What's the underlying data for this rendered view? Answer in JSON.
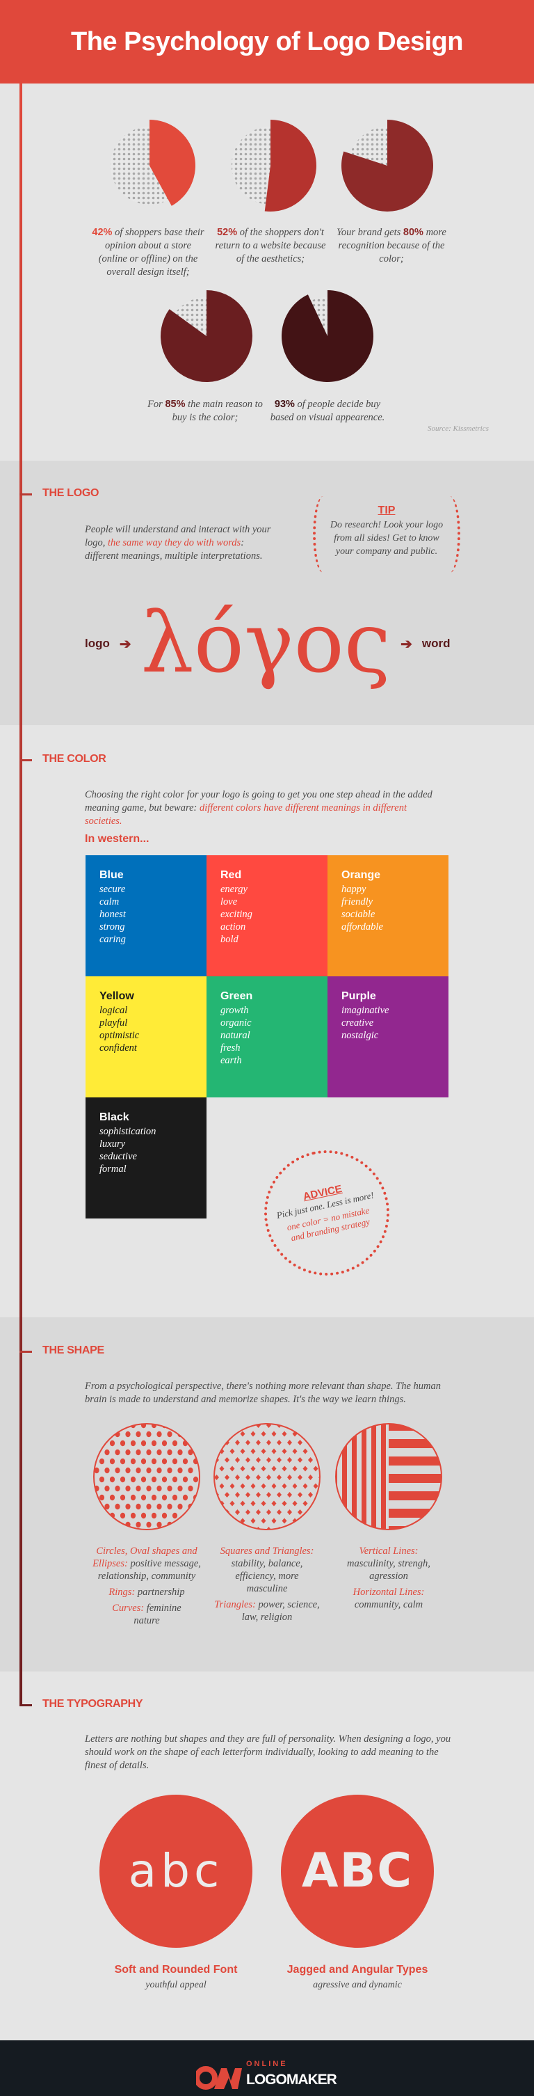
{
  "header": {
    "title": "The Psychology of Logo Design"
  },
  "colors": {
    "accent": "#e0483b",
    "dark": "#151b21"
  },
  "stats": {
    "items": [
      {
        "prefix": "",
        "value": "42%",
        "suffix": " of shoppers base their opinion about a store (online or offline) on the overall design itself;",
        "percent": 42,
        "color": "#e24a3b"
      },
      {
        "prefix": "",
        "value": "52%",
        "suffix": " of the shoppers don't return to a website because of the aesthetics;",
        "percent": 52,
        "color": "#b5332e"
      },
      {
        "prefix": "Your brand gets ",
        "value": "80%",
        "suffix": " more recognition because of the color;",
        "percent": 80,
        "color": "#8e2a29"
      },
      {
        "prefix": "For ",
        "value": "85%",
        "suffix": " the main reason to buy is the color;",
        "percent": 85,
        "color": "#6a1e20"
      },
      {
        "prefix": "",
        "value": "93%",
        "suffix": " of people decide buy based on visual appearence.",
        "percent": 93,
        "color": "#431315"
      }
    ],
    "source": "Source: Kissmetrics"
  },
  "logo_section": {
    "heading": "THE LOGO",
    "text_a": "People will understand and interact with your logo, ",
    "text_hl": "the same way they do with words",
    "text_b": ": different meanings, multiple interpretations.",
    "tip_title": "TIP",
    "tip_text": "Do research! Look your logo from all sides! Get to know your company and public.",
    "left_word": "logo",
    "greek": "λόγος",
    "right_word": "word"
  },
  "color_section": {
    "heading": "THE COLOR",
    "text_a": "Choosing the right color for your logo is going to get you one step ahead in the added meaning game, but beware: ",
    "text_hl": "different colors have different meanings in different societies.",
    "subheading": "In western...",
    "cells": [
      {
        "name": "Blue",
        "bg": "#0070bb",
        "fg": "#ffffff",
        "words": [
          "secure",
          "calm",
          "honest",
          "strong",
          "caring"
        ]
      },
      {
        "name": "Red",
        "bg": "#ff4940",
        "fg": "#ffffff",
        "words": [
          "energy",
          "love",
          "exciting",
          "action",
          "bold"
        ]
      },
      {
        "name": "Orange",
        "bg": "#f79320",
        "fg": "#ffffff",
        "words": [
          "happy",
          "friendly",
          "sociable",
          "affordable"
        ]
      },
      {
        "name": "Yellow",
        "bg": "#ffeb37",
        "fg": "#1a1a1a",
        "words": [
          "logical",
          "playful",
          "optimistic",
          "confident"
        ]
      },
      {
        "name": "Green",
        "bg": "#24b673",
        "fg": "#ffffff",
        "words": [
          "growth",
          "organic",
          "natural",
          "fresh",
          "earth"
        ]
      },
      {
        "name": "Purple",
        "bg": "#92278f",
        "fg": "#ffffff",
        "words": [
          "imaginative",
          "creative",
          "nostalgic"
        ]
      },
      {
        "name": "Black",
        "bg": "#1b1b1b",
        "fg": "#ffffff",
        "words": [
          "sophistication",
          "luxury",
          "seductive",
          "formal"
        ]
      }
    ],
    "advice_title": "ADVICE",
    "advice_text": "Pick just one. Less is more!",
    "advice_hl": "one color = no mistake and branding strategy"
  },
  "shape_section": {
    "heading": "THE SHAPE",
    "text": "From a psychological perspective, there's nothing more relevant than shape. The human brain is made to understand and memorize shapes. It's the way we learn things.",
    "c1": {
      "l1": "Circles, Oval shapes and Ellipses:",
      "t1": " positive message, relationship, community",
      "l2": "Rings:",
      "t2": " partnership",
      "l3": "Curves:",
      "t3": " feminine nature"
    },
    "c2": {
      "l1": "Squares and Triangles:",
      "t1": " stability, balance, efficiency, more masculine",
      "l2": "Triangles:",
      "t2": " power, science, law, religion"
    },
    "c3": {
      "l1": "Vertical Lines:",
      "t1": " masculinity, strengh, agression",
      "l2": "Horizontal Lines:",
      "t2": " community, calm"
    }
  },
  "typography_section": {
    "heading": "THE TYPOGRAPHY",
    "text": "Letters are nothing but shapes and they are full of personality. When designing a logo, you should work on the shape of each letterform individually, looking to add meaning to the finest of details.",
    "items": [
      {
        "sample": "abc",
        "title": "Soft and Rounded Font",
        "sub": "youthful appeal"
      },
      {
        "sample": "ABC",
        "title": "Jagged and Angular Types",
        "sub": "agressive and dynamic"
      }
    ]
  },
  "footer": {
    "brand_small": "ONLINE",
    "brand_big": "LOGOMAKER"
  }
}
